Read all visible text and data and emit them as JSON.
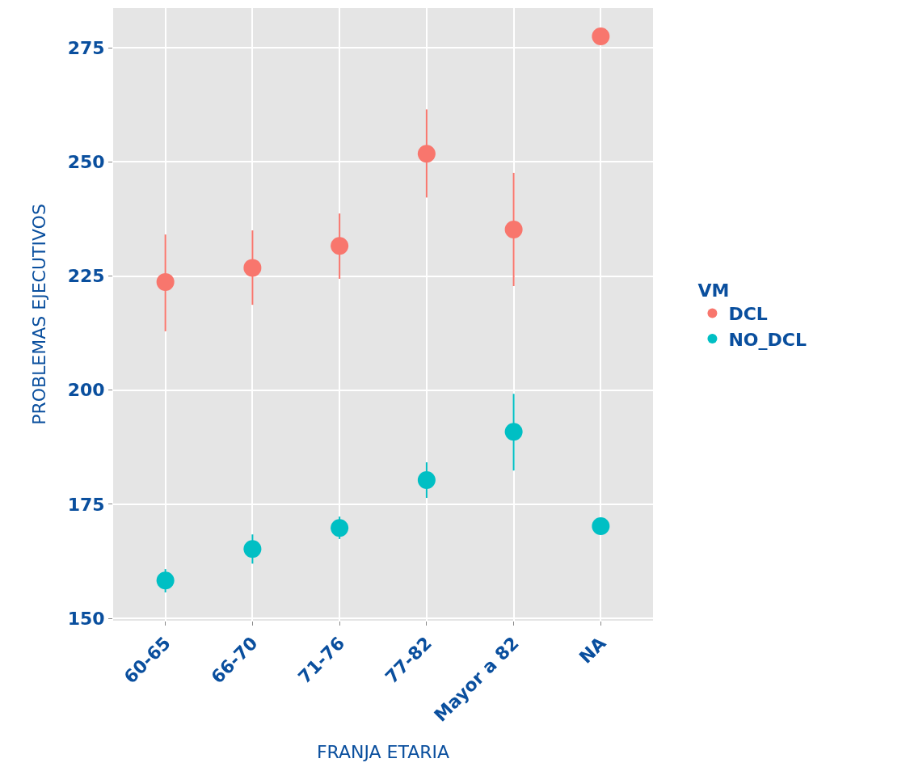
{
  "chart_data": {
    "type": "scatter",
    "xlabel": "FRANJA ETARIA",
    "ylabel": "PROBLEMAS EJECUTIVOS",
    "legend_title": "VM",
    "categories": [
      "60-65",
      "66-70",
      "71-76",
      "77-82",
      "Mayor a 82",
      "NA"
    ],
    "series": [
      {
        "name": "DCL",
        "color": "#f8766d",
        "values": [
          223.7,
          226.8,
          231.6,
          251.8,
          235.2,
          277.5
        ],
        "errors": [
          [
            212.9,
            234.1
          ],
          [
            218.7,
            235
          ],
          [
            224.4,
            238.7
          ],
          [
            242.2,
            261.5
          ],
          [
            222.8,
            247.6
          ],
          null
        ]
      },
      {
        "name": "NO_DCL",
        "color": "#00bfc4",
        "values": [
          158.3,
          165.2,
          169.8,
          180.3,
          190.9,
          170.2
        ],
        "errors": [
          [
            155.7,
            160.8
          ],
          [
            162,
            168.4
          ],
          [
            167.4,
            172.3
          ],
          [
            176.4,
            184.2
          ],
          [
            182.4,
            199.2
          ],
          null
        ]
      }
    ],
    "ylim": [
      149.5,
      283.7
    ],
    "yticks": [
      150,
      175,
      200,
      225,
      250,
      275
    ],
    "grid": true,
    "legend": "right",
    "marker": "circle"
  }
}
